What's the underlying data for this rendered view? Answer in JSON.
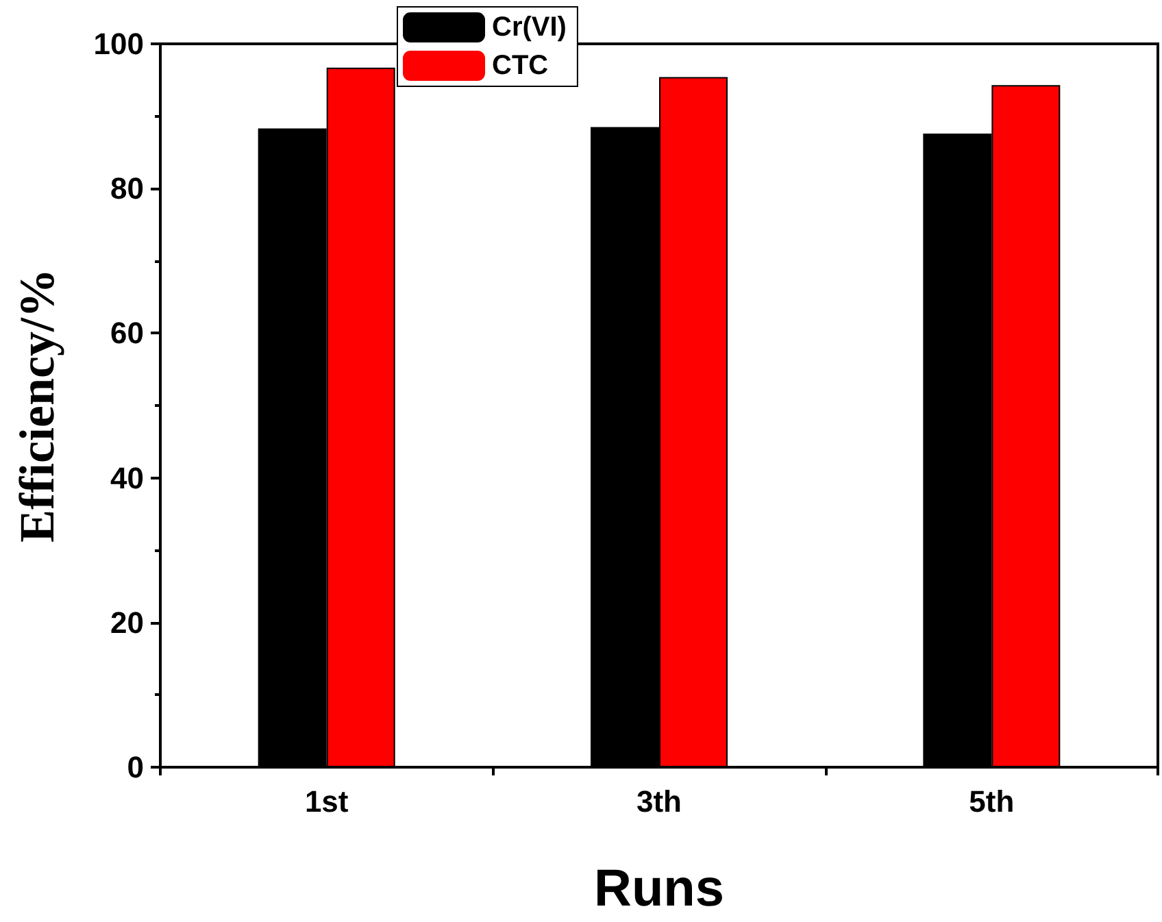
{
  "chart_data": {
    "type": "bar",
    "xlabel": "Runs",
    "ylabel": "Efficiency/%",
    "categories": [
      "1st",
      "3th",
      "5th"
    ],
    "series": [
      {
        "name": "Cr(VI)",
        "color": "#000000",
        "values": [
          88.3,
          88.5,
          87.6
        ]
      },
      {
        "name": "CTC",
        "color": "#ff0000",
        "values": [
          96.7,
          95.4,
          94.3
        ]
      }
    ],
    "ylim": [
      0,
      100
    ],
    "yticks": [
      0,
      20,
      40,
      60,
      80,
      100
    ],
    "grid": false,
    "legend": "top"
  }
}
